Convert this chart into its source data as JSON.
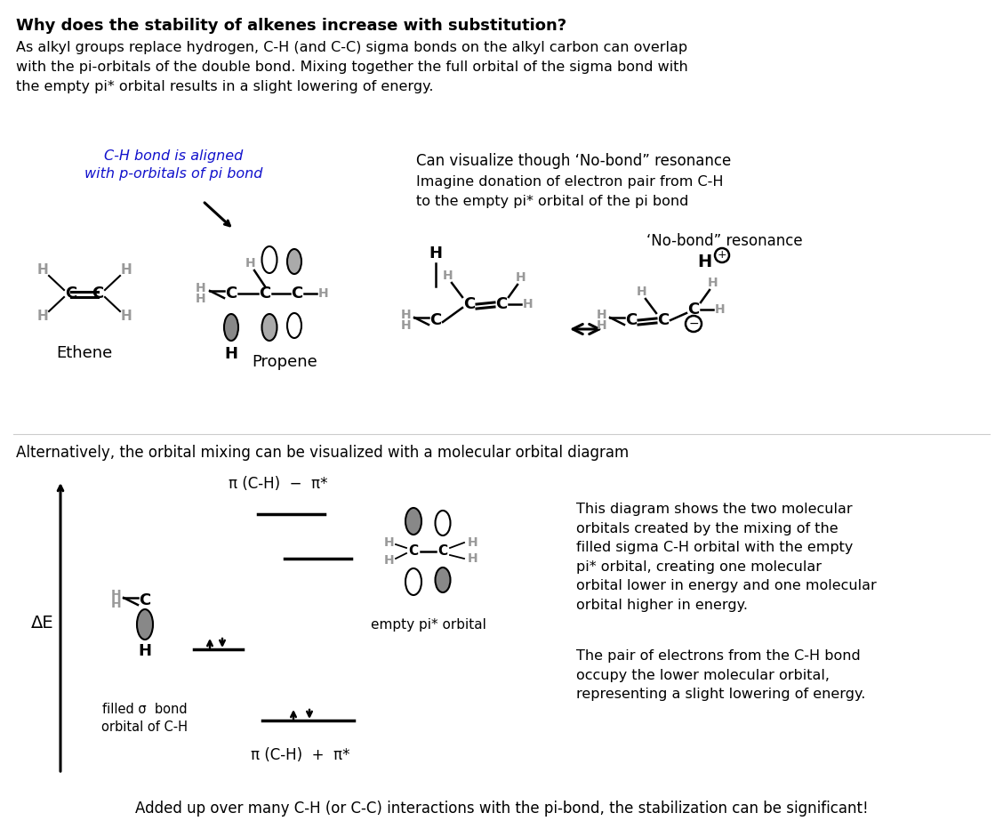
{
  "title": "Why does the stability of alkenes increase with substitution?",
  "para1": "As alkyl groups replace hydrogen, C-H (and C-C) sigma bonds on the alkyl carbon can overlap\nwith the pi-orbitals of the double bond. Mixing together the full orbital of the sigma bond with\nthe empty pi* orbital results in a slight lowering of energy.",
  "blue_label": "C-H bond is aligned\nwith p-orbitals of pi bond",
  "right_header1": "Can visualize though ‘No-bond” resonance",
  "right_header2": "Imagine donation of electron pair from C-H\nto the empty pi* orbital of the pi bond",
  "no_bond_label": "‘No-bond” resonance",
  "alt_text": "Alternatively, the orbital mixing can be visualized with a molecular orbital diagram",
  "mo_label_top": "π (C-H)  −  π*",
  "mo_label_bottom": "π (C-H)  +  π*",
  "delta_e": "ΔE",
  "filled_sigma": "filled σ  bond\norbital of C-H",
  "empty_pi": "empty pi* orbital",
  "right_desc1": "This diagram shows the two molecular\norbitals created by the mixing of the\nfilled sigma C-H orbital with the empty\npi* orbital, creating one molecular\norbital lower in energy and one molecular\norbital higher in energy.",
  "right_desc2": "The pair of electrons from the C-H bond\noccupy the lower molecular orbital,\nrepresenting a slight lowering of energy.",
  "bottom_text": "Added up over many C-H (or C-C) interactions with the pi-bond, the stabilization can be significant!",
  "ethene_label": "Ethene",
  "propene_label": "Propene",
  "bg_color": "#ffffff",
  "text_color": "#000000",
  "gray_color": "#999999",
  "blue_color": "#1111cc"
}
